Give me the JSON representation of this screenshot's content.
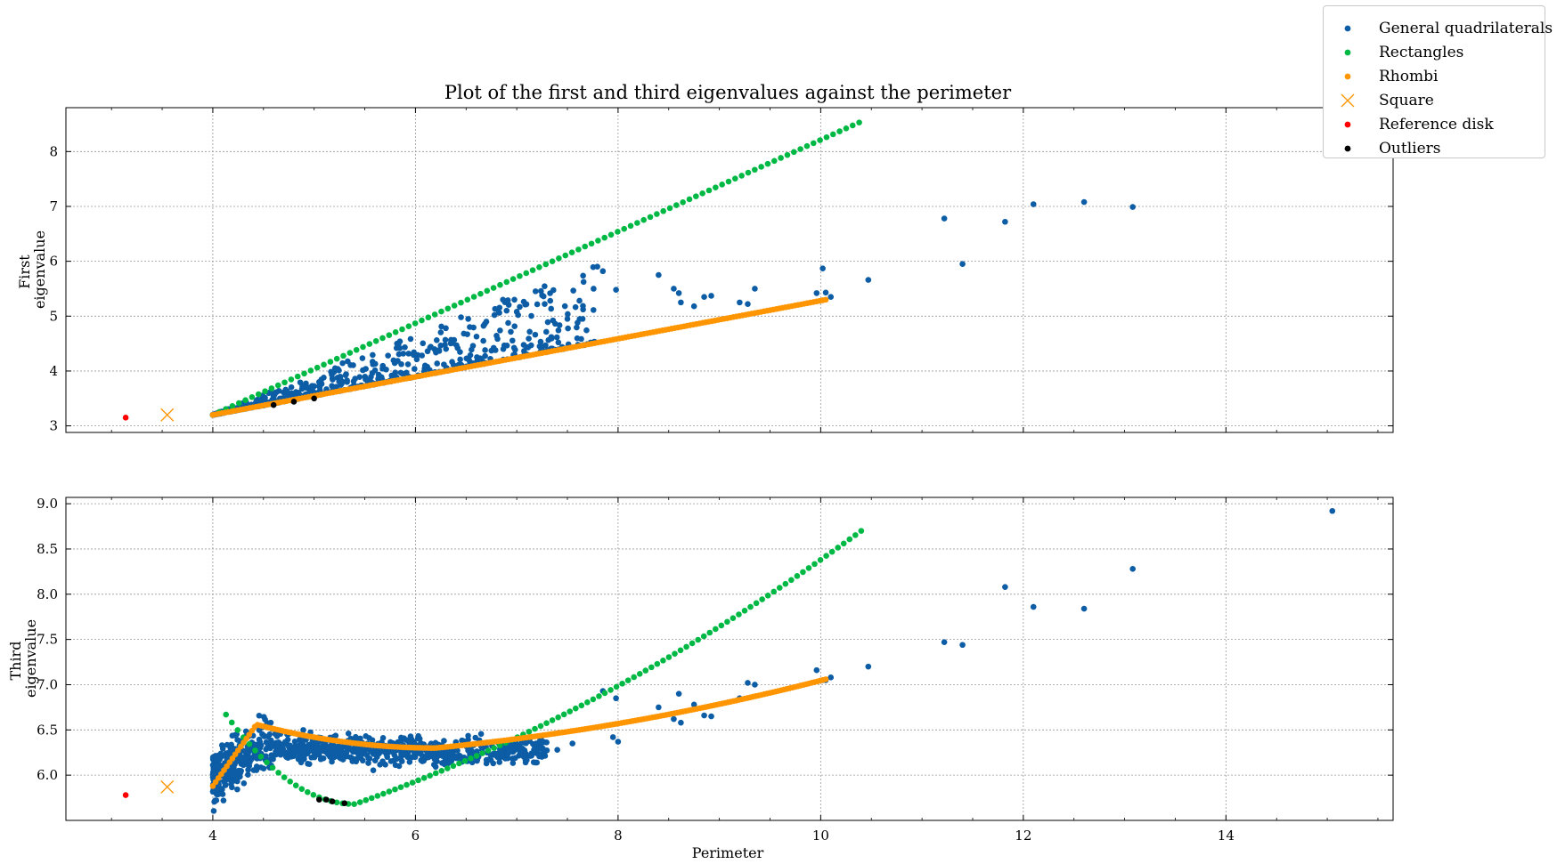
{
  "chart_data": {
    "type": "scatter",
    "title": "Plot of the first and third eigenvalues against the perimeter",
    "xlabel": "Perimeter",
    "xlim": [
      2.55,
      15.65
    ],
    "xticks": [
      4,
      6,
      8,
      10,
      12,
      14
    ],
    "grid": true,
    "legend_position": "top-right",
    "legend": [
      {
        "name": "General quadrilaterals",
        "color": "#0C5DA5",
        "marker": "dot"
      },
      {
        "name": "Rectangles",
        "color": "#00B945",
        "marker": "dot"
      },
      {
        "name": "Rhombi",
        "color": "#FF9500",
        "marker": "dot"
      },
      {
        "name": "Square",
        "color": "#FF9500",
        "marker": "x"
      },
      {
        "name": "Reference disk",
        "color": "#FF0000",
        "marker": "dot"
      },
      {
        "name": "Outliers",
        "color": "#000000",
        "marker": "dot"
      }
    ],
    "panels": [
      {
        "ylabel": [
          "First",
          "eigenvalue"
        ],
        "ylim": [
          2.88,
          8.8
        ],
        "yticks": [
          3,
          4,
          5,
          6,
          7,
          8
        ],
        "series": [
          {
            "name": "General quadrilaterals",
            "x": [
              7.85,
              7.98,
              8.4,
              8.55,
              8.6,
              8.62,
              8.75,
              8.85,
              8.92,
              9.2,
              9.28,
              9.35,
              9.96,
              10.02,
              10.05,
              10.1,
              10.47,
              11.22,
              11.4,
              11.82,
              12.1,
              12.6,
              13.08,
              7.25,
              7.0,
              6.9,
              6.78,
              6.7,
              6.45,
              6.3,
              7.5,
              7.6,
              7.65
            ],
            "y": [
              5.82,
              5.48,
              5.75,
              5.5,
              5.42,
              5.25,
              5.18,
              5.35,
              5.37,
              5.25,
              5.22,
              5.5,
              5.42,
              5.87,
              5.43,
              5.35,
              5.66,
              6.78,
              5.95,
              6.72,
              7.04,
              7.08,
              6.99,
              5.38,
              5.08,
              5.1,
              5.02,
              4.9,
              4.98,
              4.78,
              4.95,
              4.88,
              4.95
            ]
          },
          {
            "name": "Rectangles",
            "x_range": [
              4.0,
              10.38
            ],
            "count": 100,
            "y_start": 3.2,
            "y_end": 8.53
          },
          {
            "name": "Rhombi",
            "x_range": [
              4.0,
              10.05
            ],
            "count": 200,
            "y_start": 3.2,
            "y_end": 5.3
          },
          {
            "name": "Square",
            "x": [
              3.55
            ],
            "y": [
              3.2
            ]
          },
          {
            "name": "Reference disk",
            "x": [
              3.14
            ],
            "y": [
              3.15
            ]
          },
          {
            "name": "Outliers",
            "x": [
              4.6,
              4.8,
              5.0
            ],
            "y": [
              3.38,
              3.44,
              3.5
            ]
          }
        ]
      },
      {
        "ylabel": [
          "Third",
          "eigenvalue"
        ],
        "ylim": [
          5.5,
          9.07
        ],
        "yticks": [
          6.0,
          6.5,
          7.0,
          7.5,
          8.0,
          8.5,
          9.0
        ],
        "series": [
          {
            "name": "General quadrilaterals",
            "x": [
              7.85,
              7.98,
              8.4,
              8.55,
              8.6,
              8.62,
              8.75,
              8.85,
              8.92,
              9.2,
              9.28,
              9.35,
              9.96,
              10.02,
              10.05,
              10.1,
              10.47,
              11.22,
              11.4,
              11.82,
              12.1,
              12.6,
              13.08,
              15.05,
              7.95,
              8.0,
              7.55,
              7.4
            ],
            "y": [
              6.93,
              6.85,
              6.75,
              6.62,
              6.9,
              6.58,
              6.78,
              6.66,
              6.65,
              6.85,
              7.02,
              7.0,
              7.16,
              7.05,
              7.05,
              7.08,
              7.2,
              7.47,
              7.44,
              8.08,
              7.86,
              7.84,
              8.28,
              8.92,
              6.42,
              6.37,
              6.35,
              6.28
            ]
          },
          {
            "name": "Rectangles",
            "x_range": [
              4.13,
              10.4
            ],
            "count": 110,
            "y_min": 5.68,
            "y_end": 8.7
          },
          {
            "name": "Rhombi",
            "x_range": [
              4.0,
              10.05
            ],
            "count": 220,
            "y_peak": 6.56,
            "x_peak": 4.43,
            "y_start": 5.88,
            "y_end": 7.06
          },
          {
            "name": "Square",
            "x": [
              3.55
            ],
            "y": [
              5.87
            ]
          },
          {
            "name": "Reference disk",
            "x": [
              3.14
            ],
            "y": [
              5.78
            ]
          },
          {
            "name": "Outliers",
            "x": [
              5.05,
              5.12,
              5.18,
              5.3
            ],
            "y": [
              5.73,
              5.73,
              5.71,
              5.69
            ]
          }
        ]
      }
    ]
  }
}
